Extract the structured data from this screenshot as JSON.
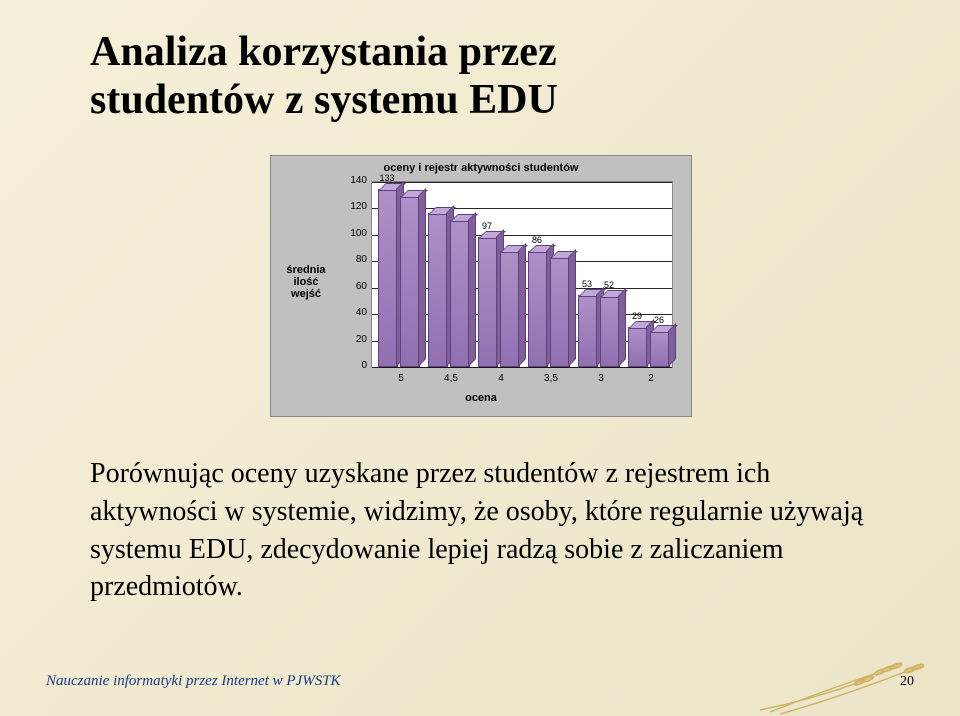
{
  "title_line1": "Analiza korzystania przez",
  "title_line2": "studentów z systemu EDU",
  "chart": {
    "type": "bar3d-grouped",
    "title": "oceny i rejestr aktywności studentów",
    "ylabel_line1": "średnia ilość",
    "ylabel_line2": "wejść",
    "xlabel": "ocena",
    "ylim": [
      0,
      140
    ],
    "yticks": [
      0,
      20,
      40,
      60,
      80,
      100,
      120,
      140
    ],
    "categories": [
      "5",
      "4,5",
      "4",
      "3,5",
      "3",
      "2"
    ],
    "values_a": [
      133,
      115,
      97,
      86,
      53,
      29
    ],
    "values_b": [
      128,
      110,
      86,
      82,
      52,
      26
    ],
    "bar_labels_a": [
      "133",
      "",
      "97",
      "86",
      "53",
      "29"
    ],
    "bar_labels_b": [
      "",
      "",
      "",
      "",
      "52",
      "26"
    ],
    "bar_color_front": "#9878b8",
    "bar_color_top": "#c0a8d8",
    "bar_color_side": "#806098",
    "plot_bg": "#ffffff",
    "chart_bg": "#c0c0c0",
    "grid_color": "#000000"
  },
  "body": "Porównując oceny uzyskane przez studentów z rejestrem ich aktywności w systemie, widzimy, że osoby, które regularnie używają systemu EDU, zdecydowanie lepiej radzą sobie z zaliczaniem przedmiotów.",
  "footer": "Nauczanie informatyki przez Internet w PJWSTK",
  "page": "20"
}
